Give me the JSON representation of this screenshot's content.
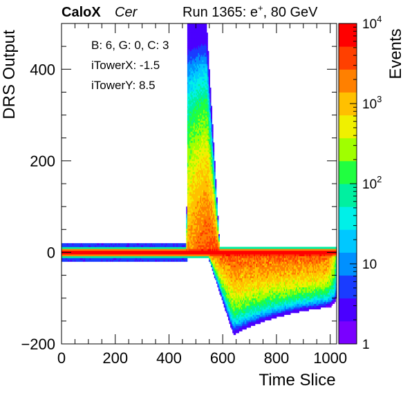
{
  "header": {
    "brand": "CaloX",
    "channel": "Cer",
    "run_prefix": "Run 1365: e",
    "run_sup": "+",
    "run_suffix": ", 80 GeV"
  },
  "info": {
    "line1": "B: 6, G: 0, C: 3",
    "line2": "iTowerX: -1.5",
    "line3": "iTowerY: 8.5"
  },
  "chart_data": {
    "type": "heatmap",
    "title": "",
    "xlabel": "Time Slice",
    "ylabel": "DRS Output",
    "zlabel": "Events",
    "xlim": [
      0,
      1024
    ],
    "ylim": [
      -200,
      500
    ],
    "zlim": [
      1,
      10000
    ],
    "z_scale": "log",
    "x_ticks": [
      0,
      200,
      400,
      600,
      800,
      1000
    ],
    "x_tick_labels": [
      "0",
      "200",
      "400",
      "600",
      "800",
      "1000"
    ],
    "y_ticks": [
      -200,
      0,
      200,
      400
    ],
    "y_tick_labels": [
      "−200",
      "0",
      "200",
      "400"
    ],
    "z_ticks": [
      1,
      10,
      100,
      1000,
      10000
    ],
    "z_tick_labels": [
      {
        "base": "1",
        "exp": ""
      },
      {
        "base": "10",
        "exp": ""
      },
      {
        "base": "10",
        "exp": "2"
      },
      {
        "base": "10",
        "exp": "3"
      },
      {
        "base": "10",
        "exp": "4"
      }
    ],
    "palette": [
      "#7a00ff",
      "#4a00ff",
      "#1a3cff",
      "#0090ff",
      "#00c8ff",
      "#00f0e8",
      "#00f0a0",
      "#20ff40",
      "#a0ff00",
      "#f0f000",
      "#ffc000",
      "#ff8000",
      "#ff4000",
      "#ff0000"
    ],
    "grid": false,
    "features": {
      "baseline": {
        "x": [
          0,
          1024
        ],
        "y": 0,
        "z": 10000
      },
      "pulse_start_x": 465,
      "pulse_peak": {
        "x": [
          470,
          540
        ],
        "y": 500
      },
      "pulse_return_x": 590,
      "undershoot_min": {
        "x": 640,
        "y": -180
      }
    }
  }
}
